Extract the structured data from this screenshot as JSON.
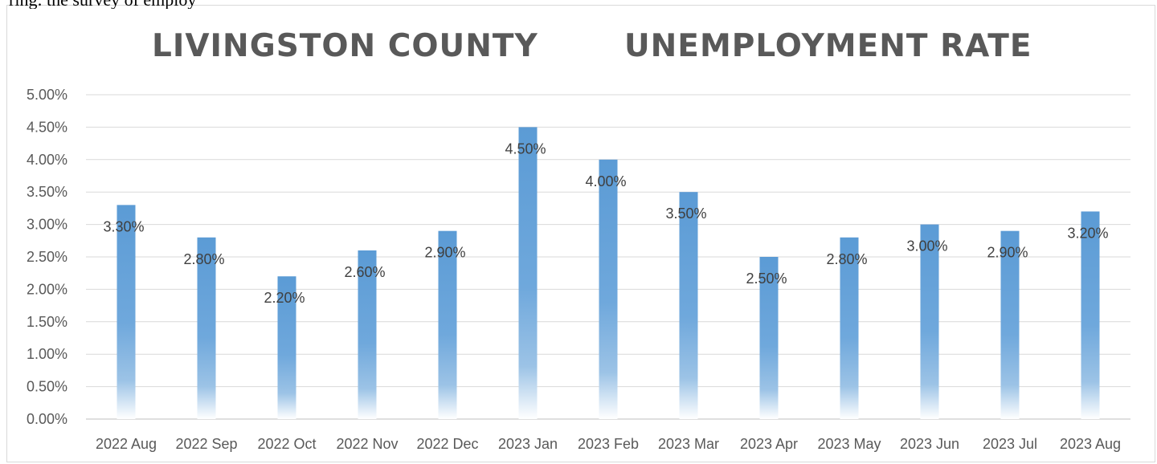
{
  "header_fragment": "ring: the survey of employ",
  "chart_data": {
    "type": "bar",
    "title_parts": [
      "LIVINGSTON COUNTY",
      "UNEMPLOYMENT RATE"
    ],
    "categories": [
      "2022 Aug",
      "2022 Sep",
      "2022 Oct",
      "2022 Nov",
      "2022 Dec",
      "2023 Jan",
      "2023 Feb",
      "2023 Mar",
      "2023 Apr",
      "2023 May",
      "2023 Jun",
      "2023 Jul",
      "2023 Aug"
    ],
    "values": [
      3.3,
      2.8,
      2.2,
      2.6,
      2.9,
      4.5,
      4.0,
      3.5,
      2.5,
      2.8,
      3.0,
      2.9,
      3.2
    ],
    "data_labels": [
      "3.30%",
      "2.80%",
      "2.20%",
      "2.60%",
      "2.90%",
      "4.50%",
      "4.00%",
      "3.50%",
      "2.50%",
      "2.80%",
      "3.00%",
      "2.90%",
      "3.20%"
    ],
    "y_ticks": [
      "0.00%",
      "0.50%",
      "1.00%",
      "1.50%",
      "2.00%",
      "2.50%",
      "3.00%",
      "3.50%",
      "4.00%",
      "4.50%",
      "5.00%"
    ],
    "ylim": [
      0,
      5
    ],
    "xlabel": "",
    "ylabel": "",
    "grid": true,
    "bar_color": "#5b9bd5"
  }
}
